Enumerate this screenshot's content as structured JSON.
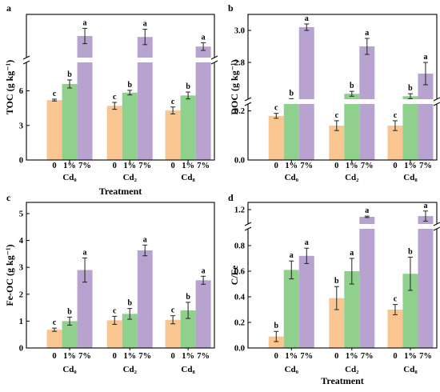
{
  "colors": {
    "c0": "#F9C692",
    "c1": "#8ED08C",
    "c7": "#B8A3D0",
    "axis": "#000000",
    "break": "#ffffff"
  },
  "chart_data": [
    {
      "id": "a",
      "panel_label": "a",
      "type": "bar",
      "ylabel": "TOC (g kg⁻¹)",
      "xlabel": "Treatment",
      "groups": [
        "Cd₀",
        "Cd₂",
        "Cd₈"
      ],
      "treatments": [
        "0",
        "1%",
        "7%"
      ],
      "axis_break": true,
      "lower_ylim": [
        0,
        7.5
      ],
      "lower_ticks": [
        "0",
        "3",
        "6"
      ],
      "upper_ylim": [
        0,
        0
      ],
      "upper_ticks": [],
      "values": [
        5.2,
        6.6,
        15.0,
        4.7,
        5.85,
        14.9,
        4.3,
        5.6,
        13.9
      ],
      "errors": [
        0.08,
        0.35,
        0.8,
        0.3,
        0.2,
        0.8,
        0.3,
        0.3,
        0.4
      ],
      "sig_letters": [
        "c",
        "b",
        "a",
        "c",
        "b",
        "a",
        "c",
        "b",
        "a"
      ]
    },
    {
      "id": "b",
      "panel_label": "b",
      "type": "bar",
      "ylabel": "DOC (g kg⁻¹)",
      "xlabel": "",
      "groups": [
        "Cd₀",
        "Cd₂",
        "Cd₈"
      ],
      "treatments": [
        "0",
        "1%",
        "7%"
      ],
      "axis_break": true,
      "lower_ylim": [
        0,
        0.3
      ],
      "lower_ticks": [
        "0.0",
        "0.2"
      ],
      "upper_ylim": [
        2.7,
        3.1
      ],
      "upper_ticks": [
        "2.8",
        "3.0"
      ],
      "values": [
        0.18,
        0.24,
        3.02,
        0.14,
        0.27,
        2.9,
        0.14,
        0.26,
        2.73
      ],
      "errors": [
        0.01,
        0.01,
        0.02,
        0.02,
        0.01,
        0.05,
        0.02,
        0.01,
        0.07
      ],
      "sig_letters": [
        "c",
        "b",
        "a",
        "c",
        "b",
        "a",
        "c",
        "b",
        "a"
      ]
    },
    {
      "id": "c",
      "panel_label": "c",
      "type": "bar",
      "ylabel": "Fe-OC (g kg⁻¹)",
      "xlabel": "",
      "groups": [
        "Cd₀",
        "Cd₂",
        "Cd₈"
      ],
      "treatments": [
        "0",
        "1%",
        "7%"
      ],
      "axis_break": false,
      "lower_ylim": [
        0,
        5
      ],
      "lower_ticks": [
        "0",
        "1",
        "2",
        "3",
        "4",
        "5"
      ],
      "upper_ylim": [
        0,
        0
      ],
      "upper_ticks": [],
      "values": [
        0.68,
        1.0,
        2.9,
        1.03,
        1.27,
        3.63,
        1.05,
        1.4,
        2.52
      ],
      "errors": [
        0.06,
        0.15,
        0.45,
        0.15,
        0.2,
        0.2,
        0.15,
        0.3,
        0.15
      ],
      "sig_letters": [
        "c",
        "b",
        "a",
        "c",
        "b",
        "a",
        "c",
        "b",
        "a"
      ]
    },
    {
      "id": "d",
      "panel_label": "d",
      "type": "bar",
      "ylabel": "C/Fe",
      "xlabel": "Treatment",
      "groups": [
        "Cd₀",
        "Cd₂",
        "Cd₈"
      ],
      "treatments": [
        "0",
        "1%",
        "7%"
      ],
      "axis_break": true,
      "lower_ylim": [
        0,
        0.9
      ],
      "lower_ticks": [
        "0.0",
        "0.2",
        "0.4",
        "0.6",
        "0.8"
      ],
      "upper_ylim": [
        1.0,
        1.3
      ],
      "upper_ticks": [
        "1.2"
      ],
      "values": [
        0.09,
        0.61,
        0.72,
        0.39,
        0.6,
        1.1,
        0.3,
        0.58,
        1.11
      ],
      "errors": [
        0.04,
        0.07,
        0.06,
        0.09,
        0.1,
        0.01,
        0.04,
        0.13,
        0.07
      ],
      "sig_letters": [
        "b",
        "a",
        "a",
        "b",
        "a",
        "a",
        "c",
        "b",
        "a"
      ]
    }
  ]
}
